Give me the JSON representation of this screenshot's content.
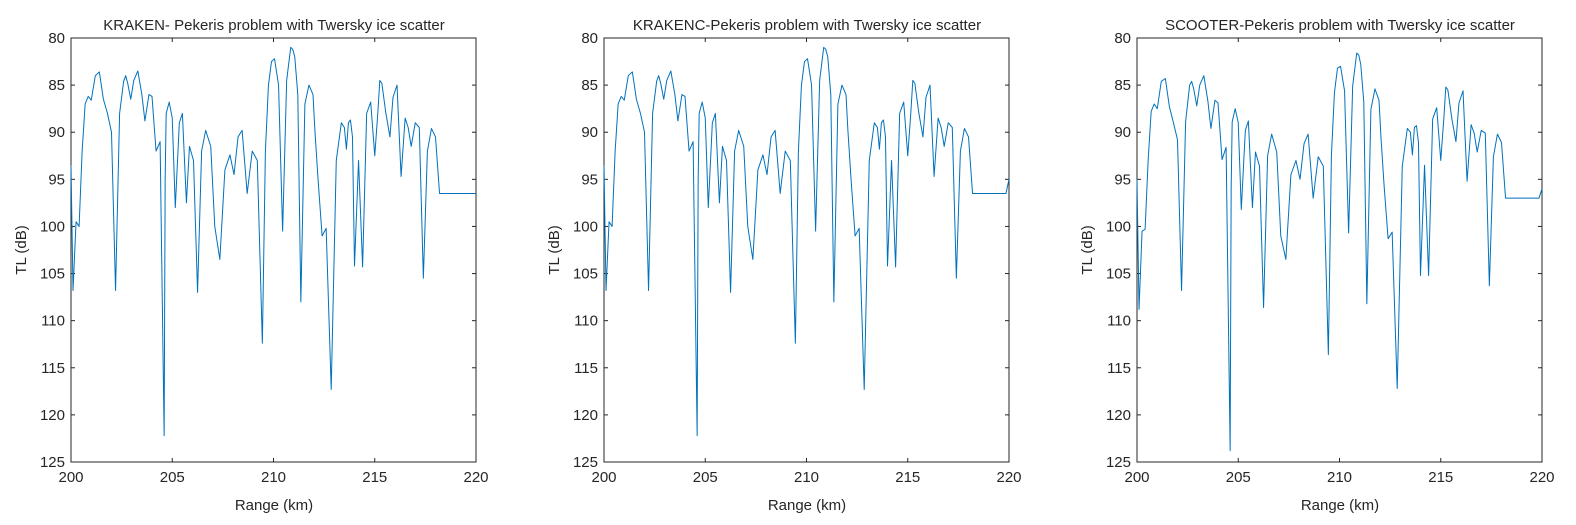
{
  "figure": {
    "line_color": "#0072BD",
    "axis_color": "#262626",
    "background": "#ffffff"
  },
  "chart_data": [
    {
      "type": "line",
      "title": "KRAKEN- Pekeris problem with Twersky ice scatter",
      "xlabel": "Range (km)",
      "ylabel": "TL (dB)",
      "xlim": [
        200,
        220
      ],
      "ylim": [
        80,
        125
      ],
      "y_reversed": true,
      "grid": false,
      "xticks": [
        200,
        205,
        210,
        215,
        220
      ],
      "yticks": [
        80,
        85,
        90,
        95,
        100,
        105,
        110,
        115,
        120,
        125
      ],
      "series": [
        {
          "x": [
            200.0,
            200.1,
            200.25,
            200.4,
            200.55,
            200.7,
            200.85,
            201.0,
            201.2,
            201.4,
            201.6,
            201.8,
            202.0,
            202.2,
            202.4,
            202.6,
            202.7,
            202.8,
            202.95,
            203.1,
            203.3,
            203.5,
            203.65,
            203.85,
            204.0,
            204.2,
            204.4,
            204.6,
            204.65,
            204.7,
            204.85,
            205.0,
            205.15,
            205.35,
            205.5,
            205.7,
            205.85,
            206.05,
            206.25,
            206.45,
            206.65,
            206.9,
            207.1,
            207.35,
            207.6,
            207.85,
            208.05,
            208.25,
            208.45,
            208.7,
            208.95,
            209.2,
            209.45,
            209.6,
            209.75,
            209.9,
            210.05,
            210.25,
            210.45,
            210.65,
            210.85,
            210.95,
            211.05,
            211.2,
            211.35,
            211.55,
            211.75,
            211.95,
            212.05,
            212.2,
            212.4,
            212.6,
            212.85,
            213.1,
            213.35,
            213.5,
            213.6,
            213.7,
            213.8,
            213.9,
            214.0,
            214.2,
            214.4,
            214.6,
            214.8,
            215.0,
            215.15,
            215.25,
            215.35,
            215.55,
            215.75,
            215.9,
            216.1,
            216.3,
            216.5,
            216.65,
            216.8,
            217.0,
            217.2,
            217.4,
            217.6,
            217.8,
            218.0,
            218.2,
            218.45,
            218.7,
            218.85,
            219.0,
            219.2,
            219.4,
            219.6,
            219.85,
            220.0
          ],
          "y": [
            93.5,
            106.8,
            99.5,
            100.0,
            92.0,
            87.0,
            86.2,
            86.6,
            84.0,
            83.6,
            86.5,
            88.0,
            90.0,
            106.8,
            88.0,
            84.6,
            84.0,
            84.8,
            86.5,
            84.5,
            83.5,
            86.0,
            88.8,
            86.0,
            86.2,
            92.0,
            91.0,
            122.2,
            95.0,
            88.0,
            86.8,
            88.5,
            98.0,
            89.0,
            88.0,
            97.5,
            91.5,
            93.0,
            107.0,
            92.0,
            89.8,
            91.5,
            100.0,
            103.5,
            94.0,
            92.4,
            94.5,
            90.5,
            89.8,
            96.5,
            92.0,
            93.0,
            112.4,
            92.0,
            85.0,
            82.5,
            82.2,
            85.0,
            100.5,
            84.5,
            81.0,
            81.2,
            82.0,
            86.0,
            108.0,
            87.0,
            85.0,
            86.0,
            90.0,
            95.0,
            101.0,
            100.2,
            117.3,
            93.0,
            89.0,
            89.5,
            91.8,
            89.0,
            88.7,
            90.5,
            104.2,
            93.0,
            104.3,
            88.0,
            86.8,
            92.5,
            88.0,
            84.5,
            84.8,
            88.0,
            90.5,
            86.3,
            85.0,
            94.7,
            88.5,
            89.5,
            91.5,
            89.0,
            89.5,
            105.5,
            92.0,
            89.6,
            90.5,
            96.5,
            96.5,
            96.5,
            96.5,
            96.5,
            96.5,
            96.5,
            96.5,
            96.5,
            96.5
          ]
        }
      ]
    },
    {
      "type": "line",
      "title": "KRAKENC-Pekeris problem with Twersky ice scatter",
      "xlabel": "Range (km)",
      "ylabel": "TL (dB)",
      "xlim": [
        200,
        220
      ],
      "ylim": [
        80,
        125
      ],
      "y_reversed": true,
      "grid": false,
      "xticks": [
        200,
        205,
        210,
        215,
        220
      ],
      "yticks": [
        80,
        85,
        90,
        95,
        100,
        105,
        110,
        115,
        120,
        125
      ],
      "series": [
        {
          "x": [
            200.0,
            200.1,
            200.25,
            200.4,
            200.55,
            200.7,
            200.85,
            201.0,
            201.2,
            201.4,
            201.6,
            201.8,
            202.0,
            202.2,
            202.4,
            202.6,
            202.7,
            202.8,
            202.95,
            203.1,
            203.3,
            203.5,
            203.65,
            203.85,
            204.0,
            204.2,
            204.4,
            204.6,
            204.65,
            204.7,
            204.85,
            205.0,
            205.15,
            205.35,
            205.5,
            205.7,
            205.85,
            206.05,
            206.25,
            206.45,
            206.65,
            206.9,
            207.1,
            207.35,
            207.6,
            207.85,
            208.05,
            208.25,
            208.45,
            208.7,
            208.95,
            209.2,
            209.45,
            209.6,
            209.75,
            209.9,
            210.05,
            210.25,
            210.45,
            210.65,
            210.85,
            210.95,
            211.05,
            211.2,
            211.35,
            211.55,
            211.75,
            211.95,
            212.05,
            212.2,
            212.4,
            212.6,
            212.85,
            213.1,
            213.35,
            213.5,
            213.6,
            213.7,
            213.8,
            213.9,
            214.0,
            214.2,
            214.4,
            214.6,
            214.8,
            215.0,
            215.15,
            215.25,
            215.35,
            215.55,
            215.75,
            215.9,
            216.1,
            216.3,
            216.5,
            216.65,
            216.8,
            217.0,
            217.2,
            217.4,
            217.6,
            217.8,
            218.0,
            218.2,
            218.45,
            218.7,
            218.85,
            219.0,
            219.2,
            219.4,
            219.6,
            219.85,
            220.0
          ],
          "y": [
            93.5,
            106.8,
            99.5,
            100.0,
            92.0,
            87.0,
            86.2,
            86.6,
            84.0,
            83.6,
            86.5,
            88.0,
            90.0,
            106.8,
            88.0,
            84.6,
            84.0,
            84.8,
            86.5,
            84.5,
            83.5,
            86.0,
            88.8,
            86.0,
            86.2,
            92.0,
            91.0,
            122.2,
            95.0,
            88.0,
            86.8,
            88.5,
            98.0,
            89.0,
            88.0,
            97.5,
            91.5,
            93.0,
            107.0,
            92.0,
            89.8,
            91.5,
            100.0,
            103.5,
            94.0,
            92.4,
            94.5,
            90.5,
            89.8,
            96.5,
            92.0,
            93.0,
            112.4,
            92.0,
            85.0,
            82.5,
            82.2,
            85.0,
            100.5,
            84.5,
            81.0,
            81.2,
            82.0,
            86.0,
            108.0,
            87.0,
            85.0,
            86.0,
            90.0,
            95.0,
            101.0,
            100.2,
            117.3,
            93.0,
            89.0,
            89.5,
            91.8,
            89.0,
            88.7,
            90.5,
            104.2,
            93.0,
            104.3,
            88.0,
            86.8,
            92.5,
            88.0,
            84.5,
            84.8,
            88.0,
            90.5,
            86.3,
            85.0,
            94.7,
            88.5,
            89.5,
            91.5,
            89.0,
            89.5,
            105.5,
            92.0,
            89.6,
            90.5,
            96.5,
            96.5,
            96.5,
            96.5,
            96.5,
            96.5,
            96.5,
            96.5,
            96.5,
            95.0
          ]
        }
      ]
    },
    {
      "type": "line",
      "title": "SCOOTER-Pekeris problem with Twersky ice scatter",
      "xlabel": "Range (km)",
      "ylabel": "TL (dB)",
      "xlim": [
        200,
        220
      ],
      "ylim": [
        80,
        125
      ],
      "y_reversed": true,
      "grid": false,
      "xticks": [
        200,
        205,
        210,
        215,
        220
      ],
      "yticks": [
        80,
        85,
        90,
        95,
        100,
        105,
        110,
        115,
        120,
        125
      ],
      "series": [
        {
          "x": [
            200.0,
            200.1,
            200.25,
            200.4,
            200.55,
            200.7,
            200.85,
            201.0,
            201.2,
            201.4,
            201.6,
            201.8,
            202.0,
            202.2,
            202.4,
            202.6,
            202.7,
            202.8,
            202.95,
            203.1,
            203.3,
            203.5,
            203.65,
            203.85,
            204.0,
            204.2,
            204.4,
            204.6,
            204.65,
            204.7,
            204.85,
            205.0,
            205.15,
            205.35,
            205.5,
            205.7,
            205.85,
            206.05,
            206.25,
            206.45,
            206.65,
            206.9,
            207.1,
            207.35,
            207.6,
            207.85,
            208.05,
            208.25,
            208.45,
            208.7,
            208.95,
            209.2,
            209.45,
            209.6,
            209.75,
            209.9,
            210.05,
            210.25,
            210.45,
            210.65,
            210.85,
            210.95,
            211.05,
            211.2,
            211.35,
            211.55,
            211.75,
            211.95,
            212.05,
            212.2,
            212.4,
            212.6,
            212.85,
            213.1,
            213.35,
            213.5,
            213.6,
            213.7,
            213.8,
            213.9,
            214.0,
            214.2,
            214.4,
            214.6,
            214.8,
            215.0,
            215.15,
            215.25,
            215.35,
            215.55,
            215.75,
            215.9,
            216.1,
            216.3,
            216.5,
            216.65,
            216.8,
            217.0,
            217.2,
            217.4,
            217.6,
            217.8,
            218.0,
            218.2,
            218.45,
            218.7,
            218.85,
            219.0,
            219.2,
            219.4,
            219.6,
            219.85,
            220.0
          ],
          "y": [
            95.0,
            108.8,
            100.5,
            100.3,
            93.0,
            87.8,
            87.0,
            87.5,
            84.6,
            84.3,
            87.3,
            89.0,
            90.8,
            106.8,
            88.9,
            85.0,
            84.6,
            85.4,
            87.2,
            85.0,
            84.0,
            86.7,
            89.6,
            86.6,
            86.9,
            92.9,
            91.6,
            123.8,
            96.0,
            88.9,
            87.5,
            89.0,
            98.2,
            89.8,
            88.8,
            98.0,
            92.1,
            93.6,
            108.6,
            92.5,
            90.2,
            92.1,
            101.0,
            103.5,
            94.5,
            93.0,
            95.0,
            91.2,
            90.2,
            97.0,
            92.6,
            93.6,
            113.6,
            92.5,
            85.8,
            83.2,
            83.0,
            85.6,
            100.7,
            85.1,
            81.6,
            81.8,
            82.8,
            86.8,
            108.2,
            87.6,
            85.4,
            86.6,
            90.6,
            95.6,
            101.3,
            100.6,
            117.2,
            93.6,
            89.6,
            90.0,
            92.4,
            89.5,
            89.3,
            91.1,
            105.2,
            93.5,
            105.2,
            88.6,
            87.4,
            93.0,
            88.6,
            85.2,
            85.5,
            88.6,
            91.0,
            86.9,
            85.6,
            95.2,
            89.2,
            90.1,
            92.1,
            89.8,
            90.1,
            106.3,
            92.6,
            90.2,
            91.1,
            97.0,
            97.0,
            97.0,
            97.0,
            97.0,
            97.0,
            97.0,
            97.0,
            97.0,
            96.0
          ]
        }
      ]
    }
  ]
}
